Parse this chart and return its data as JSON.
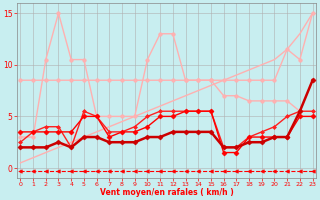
{
  "x": [
    0,
    1,
    2,
    3,
    4,
    5,
    6,
    7,
    8,
    9,
    10,
    11,
    12,
    13,
    14,
    15,
    16,
    17,
    18,
    19,
    20,
    21,
    22,
    23
  ],
  "series": [
    {
      "name": "dashed_arrow_bottom",
      "y": [
        -0.3,
        -0.3,
        -0.3,
        -0.3,
        -0.3,
        -0.3,
        -0.3,
        -0.3,
        -0.3,
        -0.3,
        -0.3,
        -0.3,
        -0.3,
        -0.3,
        -0.3,
        -0.3,
        -0.3,
        -0.3,
        -0.3,
        -0.3,
        -0.3,
        -0.3,
        -0.3,
        -0.3
      ],
      "color": "#ff0000",
      "lw": 0.8,
      "ls": "--",
      "marker": "<",
      "ms": 2.5,
      "zorder": 2
    },
    {
      "name": "diagonal_light",
      "y": [
        0.5,
        1.0,
        1.5,
        2.0,
        2.5,
        3.0,
        3.5,
        4.0,
        4.5,
        5.0,
        5.5,
        6.0,
        6.5,
        7.0,
        7.5,
        8.0,
        8.5,
        9.0,
        9.5,
        10.0,
        10.5,
        11.5,
        13.0,
        15.0
      ],
      "color": "#ffb0b0",
      "lw": 1.0,
      "ls": "-",
      "marker": null,
      "ms": 0,
      "zorder": 2
    },
    {
      "name": "flat_light_top",
      "y": [
        8.5,
        8.5,
        8.5,
        8.5,
        8.5,
        8.5,
        8.5,
        8.5,
        8.5,
        8.5,
        8.5,
        8.5,
        8.5,
        8.5,
        8.5,
        8.5,
        7.0,
        7.0,
        6.5,
        6.5,
        6.5,
        6.5,
        5.5,
        8.5
      ],
      "color": "#ffb0b0",
      "lw": 1.0,
      "ls": "-",
      "marker": "o",
      "ms": 2.5,
      "zorder": 3
    },
    {
      "name": "peak_light",
      "y": [
        3.0,
        3.0,
        10.5,
        15.0,
        10.5,
        10.5,
        5.0,
        5.0,
        5.0,
        5.0,
        10.5,
        13.0,
        13.0,
        8.5,
        8.5,
        8.5,
        8.5,
        8.5,
        8.5,
        8.5,
        8.5,
        11.5,
        10.5,
        15.0
      ],
      "color": "#ffb0b0",
      "lw": 1.0,
      "ls": "-",
      "marker": "o",
      "ms": 2.5,
      "zorder": 3
    },
    {
      "name": "line_mid_dark",
      "y": [
        3.5,
        3.5,
        3.5,
        3.5,
        3.5,
        5.0,
        5.0,
        3.0,
        3.5,
        3.5,
        4.0,
        5.0,
        5.0,
        5.5,
        5.5,
        5.5,
        1.5,
        1.5,
        3.0,
        3.0,
        3.0,
        3.0,
        5.0,
        5.0
      ],
      "color": "#ff0000",
      "lw": 1.0,
      "ls": "-",
      "marker": "D",
      "ms": 2.5,
      "zorder": 5
    },
    {
      "name": "line_bot_dark",
      "y": [
        2.0,
        2.0,
        2.0,
        2.5,
        2.0,
        3.0,
        3.0,
        2.5,
        2.5,
        2.5,
        3.0,
        3.0,
        3.5,
        3.5,
        3.5,
        3.5,
        2.0,
        2.0,
        2.5,
        2.5,
        3.0,
        3.0,
        5.5,
        8.5
      ],
      "color": "#cc0000",
      "lw": 1.8,
      "ls": "-",
      "marker": "D",
      "ms": 2.5,
      "zorder": 6
    },
    {
      "name": "line_cross_dark",
      "y": [
        2.5,
        3.5,
        4.0,
        4.0,
        2.0,
        5.5,
        5.0,
        3.5,
        3.5,
        4.0,
        5.0,
        5.5,
        5.5,
        5.5,
        5.5,
        5.5,
        2.0,
        2.0,
        3.0,
        3.5,
        4.0,
        5.0,
        5.5,
        5.5
      ],
      "color": "#ff2020",
      "lw": 1.0,
      "ls": "-",
      "marker": "D",
      "ms": 2.0,
      "zorder": 4
    }
  ],
  "xlim": [
    -0.3,
    23.3
  ],
  "ylim": [
    -1.0,
    16.0
  ],
  "yticks": [
    0,
    5,
    10,
    15
  ],
  "xticks": [
    0,
    1,
    2,
    3,
    4,
    5,
    6,
    7,
    8,
    9,
    10,
    11,
    12,
    13,
    14,
    15,
    16,
    17,
    18,
    19,
    20,
    21,
    22,
    23
  ],
  "xlabel": "Vent moyen/en rafales ( km/h )",
  "bg_color": "#c8eef0",
  "grid_color": "#b0b0b0",
  "tick_color": "#ff0000",
  "label_color": "#ff0000",
  "spine_color": "#888888"
}
